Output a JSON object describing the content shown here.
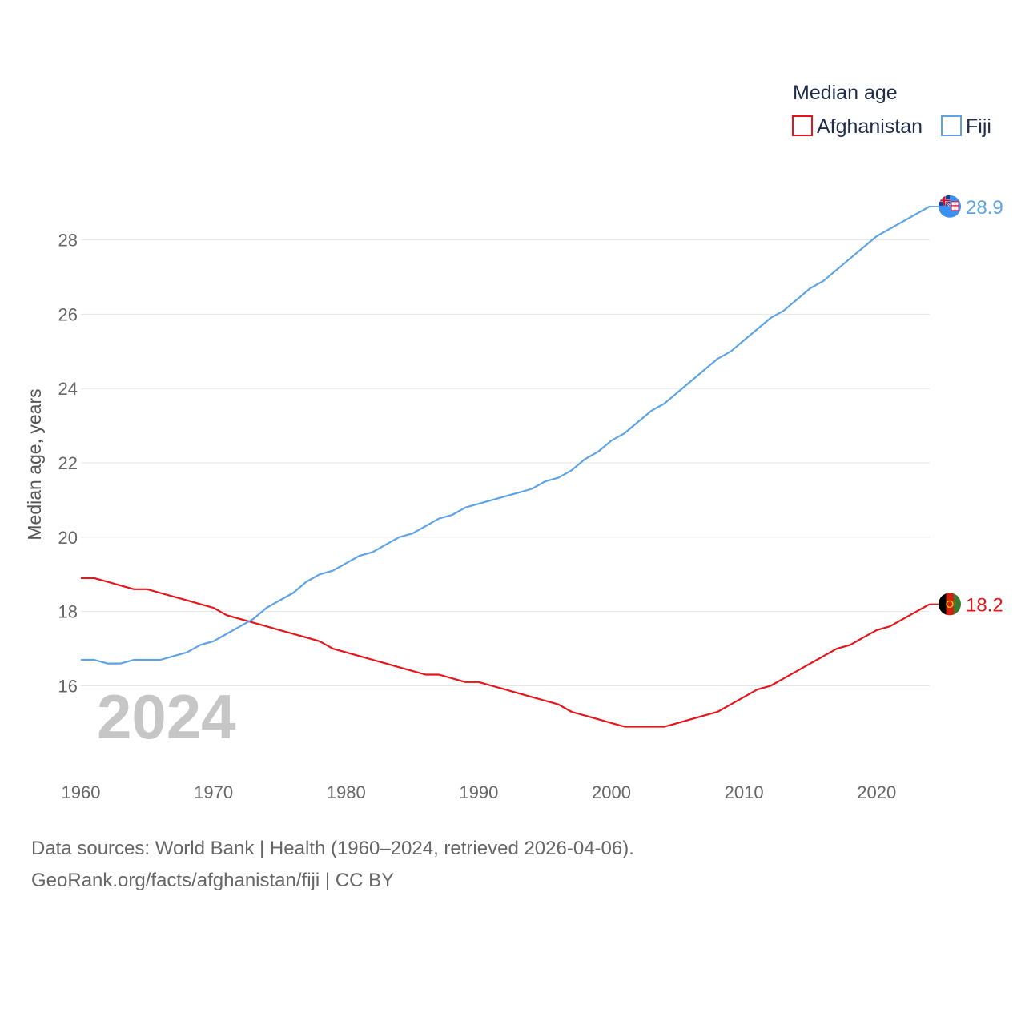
{
  "chart_data": {
    "type": "line",
    "title": "",
    "xlabel": "",
    "ylabel": "Median age, years",
    "year_label": "2024",
    "xlim": [
      1960,
      2024
    ],
    "ylim": [
      14.2,
      29.5
    ],
    "x_ticks": [
      1960,
      1970,
      1980,
      1990,
      2000,
      2010,
      2020
    ],
    "y_ticks": [
      16,
      18,
      20,
      22,
      24,
      26,
      28
    ],
    "grid": true,
    "legend": {
      "title": "Median age",
      "position": "top-right"
    },
    "x": [
      1960,
      1961,
      1962,
      1963,
      1964,
      1965,
      1966,
      1967,
      1968,
      1969,
      1970,
      1971,
      1972,
      1973,
      1974,
      1975,
      1976,
      1977,
      1978,
      1979,
      1980,
      1981,
      1982,
      1983,
      1984,
      1985,
      1986,
      1987,
      1988,
      1989,
      1990,
      1991,
      1992,
      1993,
      1994,
      1995,
      1996,
      1997,
      1998,
      1999,
      2000,
      2001,
      2002,
      2003,
      2004,
      2005,
      2006,
      2007,
      2008,
      2009,
      2010,
      2011,
      2012,
      2013,
      2014,
      2015,
      2016,
      2017,
      2018,
      2019,
      2020,
      2021,
      2022,
      2023,
      2024
    ],
    "series": [
      {
        "name": "Afghanistan",
        "color": "#e8141b",
        "end_label": "18.2",
        "flag": "afghanistan-flag",
        "values": [
          18.9,
          18.9,
          18.8,
          18.7,
          18.6,
          18.6,
          18.5,
          18.4,
          18.3,
          18.2,
          18.1,
          17.9,
          17.8,
          17.7,
          17.6,
          17.5,
          17.4,
          17.3,
          17.2,
          17.0,
          16.9,
          16.8,
          16.7,
          16.6,
          16.5,
          16.4,
          16.3,
          16.3,
          16.2,
          16.1,
          16.1,
          16.0,
          15.9,
          15.8,
          15.7,
          15.6,
          15.5,
          15.3,
          15.2,
          15.1,
          15.0,
          14.9,
          14.9,
          14.9,
          14.9,
          15.0,
          15.1,
          15.2,
          15.3,
          15.5,
          15.7,
          15.9,
          16.0,
          16.2,
          16.4,
          16.6,
          16.8,
          17.0,
          17.1,
          17.3,
          17.5,
          17.6,
          17.8,
          18.0,
          18.2
        ]
      },
      {
        "name": "Fiji",
        "color": "#5ea3e6",
        "end_label": "28.9",
        "flag": "fiji-flag",
        "values": [
          16.7,
          16.7,
          16.6,
          16.6,
          16.7,
          16.7,
          16.7,
          16.8,
          16.9,
          17.1,
          17.2,
          17.4,
          17.6,
          17.8,
          18.1,
          18.3,
          18.5,
          18.8,
          19.0,
          19.1,
          19.3,
          19.5,
          19.6,
          19.8,
          20.0,
          20.1,
          20.3,
          20.5,
          20.6,
          20.8,
          20.9,
          21.0,
          21.1,
          21.2,
          21.3,
          21.5,
          21.6,
          21.8,
          22.1,
          22.3,
          22.6,
          22.8,
          23.1,
          23.4,
          23.6,
          23.9,
          24.2,
          24.5,
          24.8,
          25.0,
          25.3,
          25.6,
          25.9,
          26.1,
          26.4,
          26.7,
          26.9,
          27.2,
          27.5,
          27.8,
          28.1,
          28.3,
          28.5,
          28.7,
          28.9
        ]
      }
    ]
  },
  "footer": {
    "sources": "Data sources: World Bank | Health (1960–2024, retrieved 2026-04-06).",
    "attribution": "GeoRank.org/facts/afghanistan/fiji | CC BY"
  }
}
